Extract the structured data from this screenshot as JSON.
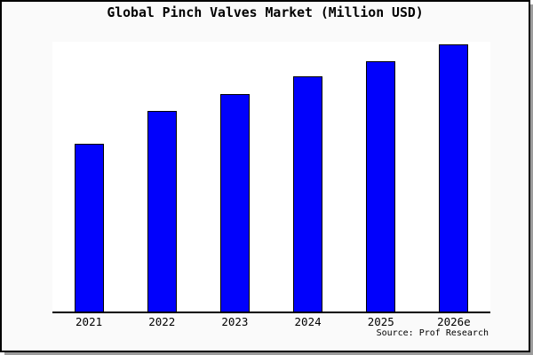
{
  "chart_data": {
    "type": "bar",
    "title": "Global Pinch Valves Market (Million USD)",
    "categories": [
      "2021",
      "2022",
      "2023",
      "2024",
      "2025",
      "2026e"
    ],
    "values": [
      189,
      226,
      245,
      265,
      282,
      301
    ],
    "units": "relative bar heights (no y-axis labels shown in image)",
    "ylim": [
      0,
      304
    ],
    "xlabel": "",
    "ylabel": "",
    "grid": false,
    "legend": null,
    "source": "Source: Prof Research",
    "bar_color": "#0101fc",
    "bar_edge_color": "#000000",
    "background_color": "#fafafa",
    "plot_background_color": "#ffffff",
    "axis_color": "#000000"
  }
}
